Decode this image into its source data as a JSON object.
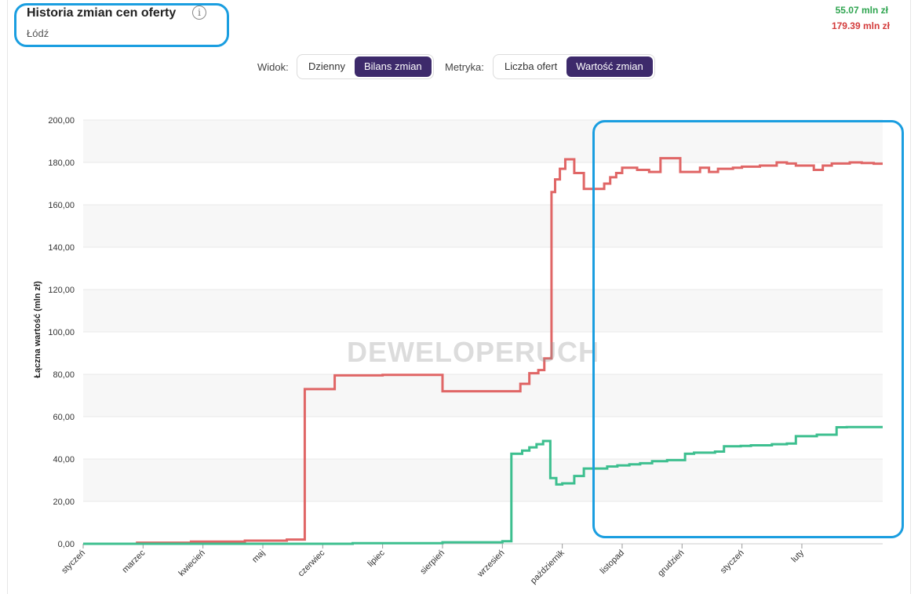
{
  "header": {
    "title": "Historia zmian cen oferty",
    "info_symbol": "i",
    "subtitle": "Łódź"
  },
  "stats": {
    "green_value": "55.07 mln zł",
    "red_value": "179.39 mln zł"
  },
  "controls": {
    "view_label": "Widok:",
    "view_options": [
      "Dzienny",
      "Bilans zmian"
    ],
    "view_selected": 1,
    "metric_label": "Metryka:",
    "metric_options": [
      "Liczba ofert",
      "Wartość zmian"
    ],
    "metric_selected": 1
  },
  "watermark": "DEWELOPERUCH",
  "colors": {
    "red_series": "#e06666",
    "green_series": "#3dbf8f",
    "highlight": "#1a9ee0",
    "active_button": "#3d2a6b"
  },
  "chart_data": {
    "type": "line",
    "step": true,
    "ylabel": "Łączna wartość (mln zł)",
    "ylim": [
      0,
      200
    ],
    "yticks": [
      "0,00",
      "20,00",
      "40,00",
      "60,00",
      "80,00",
      "100,00",
      "120,00",
      "140,00",
      "160,00",
      "180,00",
      "200,00"
    ],
    "x_unit": "month index (0 = styczeń)",
    "xlim": [
      0,
      13.35
    ],
    "xticks": [
      {
        "label": "styczeń",
        "x": 0
      },
      {
        "label": "marzec",
        "x": 1
      },
      {
        "label": "kwiecień",
        "x": 2
      },
      {
        "label": "maj",
        "x": 3
      },
      {
        "label": "czerwiec",
        "x": 4
      },
      {
        "label": "lipiec",
        "x": 5
      },
      {
        "label": "sierpień",
        "x": 6
      },
      {
        "label": "wrzesień",
        "x": 7
      },
      {
        "label": "październik",
        "x": 8
      },
      {
        "label": "listopad",
        "x": 9
      },
      {
        "label": "grudzień",
        "x": 10
      },
      {
        "label": "styczeń",
        "x": 11
      },
      {
        "label": "luty",
        "x": 12
      }
    ],
    "grid": true,
    "series": [
      {
        "color": "#e06666",
        "points": [
          [
            0,
            0
          ],
          [
            0.9,
            0.5
          ],
          [
            1.8,
            1
          ],
          [
            2.7,
            1.5
          ],
          [
            3.4,
            2
          ],
          [
            3.7,
            73
          ],
          [
            4.2,
            79.5
          ],
          [
            5.0,
            79.7
          ],
          [
            5.95,
            79.7
          ],
          [
            6.0,
            72
          ],
          [
            7.0,
            72
          ],
          [
            7.3,
            75.5
          ],
          [
            7.45,
            80.5
          ],
          [
            7.6,
            82
          ],
          [
            7.7,
            87.5
          ],
          [
            7.82,
            166
          ],
          [
            7.88,
            172
          ],
          [
            7.96,
            177
          ],
          [
            8.05,
            181.5
          ],
          [
            8.2,
            175
          ],
          [
            8.36,
            167.5
          ],
          [
            8.7,
            170
          ],
          [
            8.8,
            173
          ],
          [
            8.9,
            175
          ],
          [
            9.0,
            177.5
          ],
          [
            9.25,
            176.5
          ],
          [
            9.45,
            175.5
          ],
          [
            9.64,
            182
          ],
          [
            9.97,
            175.5
          ],
          [
            10.3,
            177.5
          ],
          [
            10.45,
            175.5
          ],
          [
            10.6,
            177
          ],
          [
            10.85,
            177.5
          ],
          [
            11.0,
            178
          ],
          [
            11.3,
            178.5
          ],
          [
            11.58,
            180
          ],
          [
            11.75,
            179.5
          ],
          [
            11.9,
            178.5
          ],
          [
            12.2,
            176.5
          ],
          [
            12.35,
            178.5
          ],
          [
            12.5,
            179.5
          ],
          [
            12.8,
            180
          ],
          [
            13.0,
            179.7
          ],
          [
            13.2,
            179.39
          ]
        ],
        "end_x": 13.35
      },
      {
        "color": "#3dbf8f",
        "points": [
          [
            0,
            0
          ],
          [
            4.5,
            0.3
          ],
          [
            6.0,
            0.7
          ],
          [
            7.0,
            1.2
          ],
          [
            7.15,
            42.5
          ],
          [
            7.33,
            44
          ],
          [
            7.45,
            45.5
          ],
          [
            7.57,
            47
          ],
          [
            7.68,
            48.5
          ],
          [
            7.8,
            31
          ],
          [
            7.9,
            28
          ],
          [
            8.0,
            28.5
          ],
          [
            8.2,
            32
          ],
          [
            8.36,
            35.5
          ],
          [
            8.75,
            36.5
          ],
          [
            8.92,
            37
          ],
          [
            9.12,
            37.5
          ],
          [
            9.3,
            38
          ],
          [
            9.5,
            39
          ],
          [
            9.75,
            39.5
          ],
          [
            10.05,
            42.5
          ],
          [
            10.2,
            43
          ],
          [
            10.55,
            43.5
          ],
          [
            10.7,
            46
          ],
          [
            10.98,
            46.2
          ],
          [
            11.15,
            46.5
          ],
          [
            11.5,
            47
          ],
          [
            11.75,
            47.3
          ],
          [
            11.9,
            50.8
          ],
          [
            12.25,
            51.5
          ],
          [
            12.58,
            55
          ],
          [
            12.75,
            55.07
          ]
        ],
        "end_x": 13.35
      }
    ]
  }
}
